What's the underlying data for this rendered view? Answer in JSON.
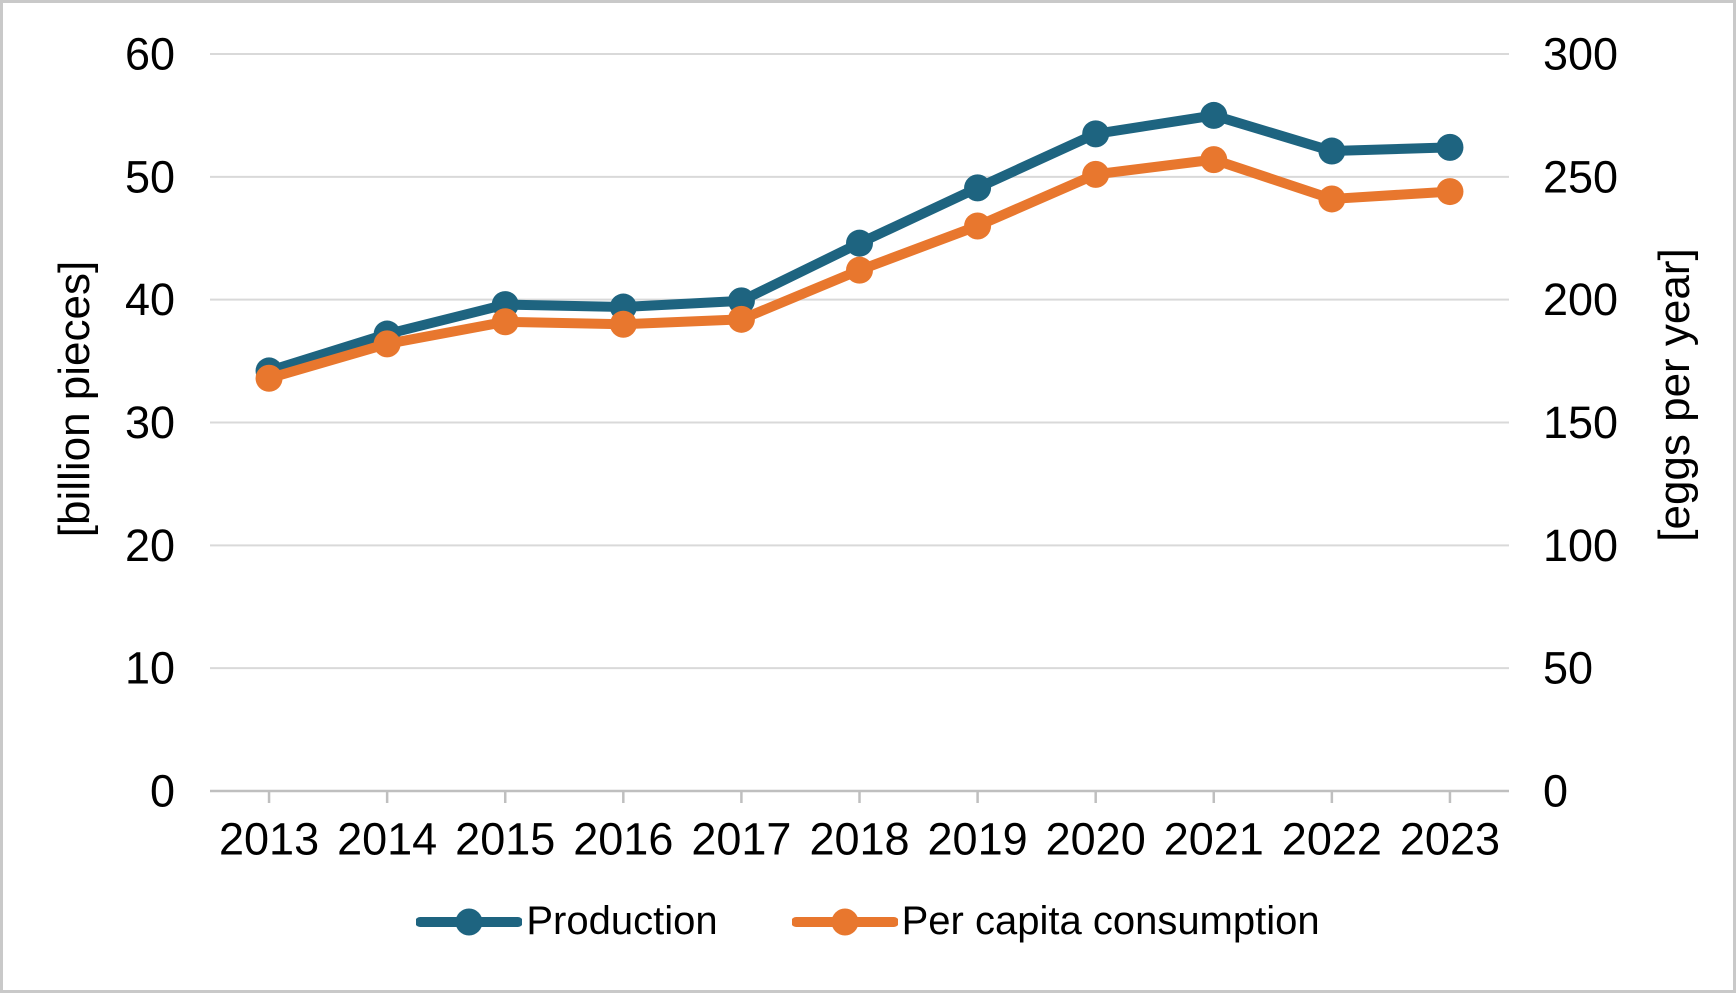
{
  "chart_data": {
    "type": "line",
    "x": [
      "2013",
      "2014",
      "2015",
      "2016",
      "2017",
      "2018",
      "2019",
      "2020",
      "2021",
      "2022",
      "2023"
    ],
    "series": [
      {
        "name": "Production",
        "axis": "left",
        "color": "#1E6480",
        "values": [
          34.2,
          37.2,
          39.6,
          39.4,
          39.9,
          44.6,
          49.1,
          53.5,
          55.0,
          52.1,
          52.4
        ]
      },
      {
        "name": "Per capita consumption",
        "axis": "right",
        "color": "#E8772E",
        "values": [
          168,
          182,
          191,
          190,
          192,
          212,
          230,
          251,
          257,
          241,
          244
        ]
      }
    ],
    "left_axis": {
      "label": "[billion pieces]",
      "min": 0,
      "max": 60,
      "ticks": [
        0,
        10,
        20,
        30,
        40,
        50,
        60
      ]
    },
    "right_axis": {
      "label": "[eggs per year]",
      "min": 0,
      "max": 300,
      "ticks": [
        0,
        50,
        100,
        150,
        200,
        250,
        300
      ]
    },
    "title": "",
    "grid": true,
    "gridline_color": "#d9d9d9",
    "axis_line_color": "#bfbfbf",
    "legend_position": "bottom"
  }
}
